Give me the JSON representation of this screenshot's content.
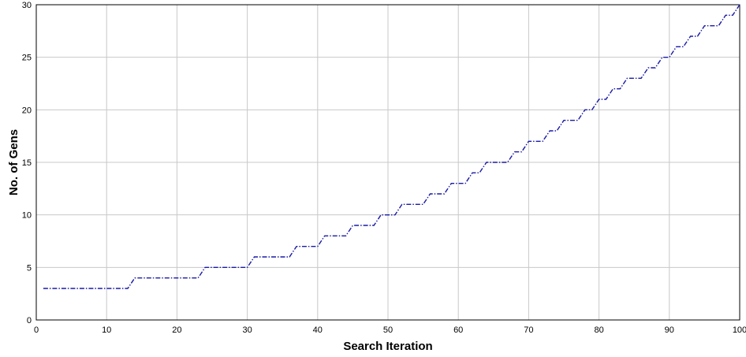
{
  "chart_data": {
    "type": "line",
    "xlabel": "Search Iteration",
    "ylabel": "No. of Gens",
    "xlim": [
      0,
      100
    ],
    "ylim": [
      0,
      30
    ],
    "xticks": [
      0,
      10,
      20,
      30,
      40,
      50,
      60,
      70,
      80,
      90,
      100
    ],
    "yticks": [
      0,
      5,
      10,
      15,
      20,
      25,
      30
    ],
    "grid": true,
    "colors": {
      "series": "#1a1aa6",
      "grid": "#c8c8c8",
      "axes": "#000000"
    },
    "series": [
      {
        "line_style": "dash-dot",
        "x": [
          1,
          13,
          14,
          23,
          24,
          30,
          31,
          36,
          37,
          40,
          41,
          44,
          45,
          48,
          49,
          51,
          52,
          55,
          56,
          58,
          59,
          61,
          62,
          63,
          64,
          65,
          66,
          67,
          68,
          69,
          70,
          71,
          72,
          73,
          74,
          75,
          76,
          77,
          78,
          79,
          80,
          81,
          82,
          83,
          84,
          85,
          86,
          87,
          88,
          89,
          90,
          91,
          92,
          93,
          94,
          95,
          96,
          97,
          98,
          99,
          100
        ],
        "y": [
          3,
          3,
          4,
          4,
          5,
          5,
          6,
          6,
          7,
          7,
          8,
          8,
          9,
          9,
          10,
          10,
          11,
          11,
          12,
          12,
          13,
          13,
          14,
          14,
          15,
          15,
          15,
          15,
          16,
          16,
          17,
          17,
          17,
          18,
          18,
          19,
          19,
          19,
          20,
          20,
          21,
          21,
          22,
          22,
          23,
          23,
          23,
          24,
          24,
          25,
          25,
          26,
          26,
          27,
          27,
          28,
          28,
          28,
          29,
          29,
          30
        ]
      }
    ]
  }
}
